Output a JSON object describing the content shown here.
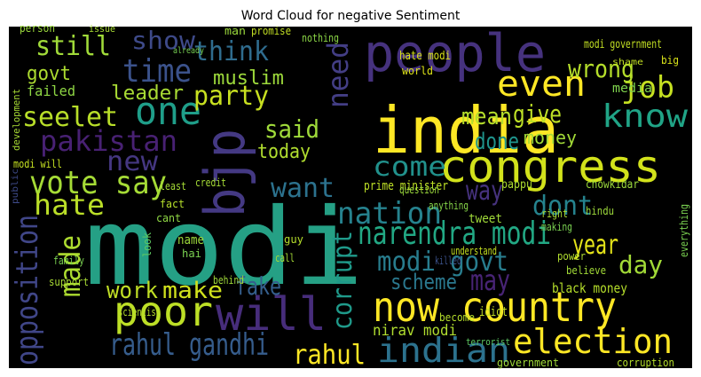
{
  "chart_data": {
    "type": "wordcloud",
    "title": "Word Cloud for negative Sentiment",
    "background": "#000000",
    "words": [
      {
        "text": "modi",
        "color": "#25a085"
      },
      {
        "text": "india",
        "color": "#fde725"
      },
      {
        "text": "people",
        "color": "#46327e"
      },
      {
        "text": "congress",
        "color": "#d2e21b"
      },
      {
        "text": "now country",
        "color": "#fde725"
      },
      {
        "text": "will",
        "color": "#472d7b"
      },
      {
        "text": "bjp",
        "color": "#443983"
      },
      {
        "text": "poor",
        "color": "#bddf26"
      },
      {
        "text": "election",
        "color": "#fde725"
      },
      {
        "text": "indian",
        "color": "#2c728e"
      },
      {
        "text": "narendra modi",
        "color": "#22a884"
      },
      {
        "text": "vote say",
        "color": "#a5db36"
      },
      {
        "text": "even",
        "color": "#fde725"
      },
      {
        "text": "know",
        "color": "#20a486"
      },
      {
        "text": "one",
        "color": "#1f9e89"
      },
      {
        "text": "time",
        "color": "#3b528b"
      },
      {
        "text": "think",
        "color": "#2f6c8e"
      },
      {
        "text": "show",
        "color": "#3e4a89"
      },
      {
        "text": "still",
        "color": "#a0da39"
      },
      {
        "text": "govt",
        "color": "#addc30"
      },
      {
        "text": "failed",
        "color": "#8fd744"
      },
      {
        "text": "seelet",
        "color": "#b8de29"
      },
      {
        "text": "leader",
        "color": "#a8db34"
      },
      {
        "text": "party",
        "color": "#c8e020"
      },
      {
        "text": "muslim",
        "color": "#9dd93b"
      },
      {
        "text": "pakistan",
        "color": "#482173"
      },
      {
        "text": "mean",
        "color": "#b5de2b"
      },
      {
        "text": "give",
        "color": "#bddf26"
      },
      {
        "text": "money",
        "color": "#a2da37"
      },
      {
        "text": "job",
        "color": "#c5e021"
      },
      {
        "text": "wrong",
        "color": "#b5de2b"
      },
      {
        "text": "media",
        "color": "#7fd34e"
      },
      {
        "text": "done",
        "color": "#1f948c"
      },
      {
        "text": "need",
        "color": "#433e85"
      },
      {
        "text": "said",
        "color": "#9fda3a"
      },
      {
        "text": "today",
        "color": "#b0dd2f"
      },
      {
        "text": "come",
        "color": "#21918c"
      },
      {
        "text": "new",
        "color": "#453781"
      },
      {
        "text": "want",
        "color": "#2c728e"
      },
      {
        "text": "way",
        "color": "#46327e"
      },
      {
        "text": "dont",
        "color": "#25838e"
      },
      {
        "text": "nation",
        "color": "#26828e"
      },
      {
        "text": "hate",
        "color": "#bade28"
      },
      {
        "text": "made",
        "color": "#addc30"
      },
      {
        "text": "opposition",
        "color": "#404688"
      },
      {
        "text": "work",
        "color": "#c0df25"
      },
      {
        "text": "make",
        "color": "#d0e11c"
      },
      {
        "text": "fake",
        "color": "#355f8d"
      },
      {
        "text": "corrupt",
        "color": "#1f9a8a"
      },
      {
        "text": "scheme",
        "color": "#2a788e"
      },
      {
        "text": "may",
        "color": "#482475"
      },
      {
        "text": "modi govt",
        "color": "#287d8e"
      },
      {
        "text": "year",
        "color": "#e5e419"
      },
      {
        "text": "day",
        "color": "#a2da37"
      },
      {
        "text": "rahul gandhi",
        "color": "#365d8d"
      },
      {
        "text": "rahul",
        "color": "#fde725"
      },
      {
        "text": "black money",
        "color": "#b5de2b"
      },
      {
        "text": "nirav modi",
        "color": "#b0dd2f"
      },
      {
        "text": "prime minister",
        "color": "#bddf26"
      },
      {
        "text": "government",
        "color": "#a0da39"
      },
      {
        "text": "corruption",
        "color": "#b5de2b"
      },
      {
        "text": "modi government",
        "color": "#c2df23"
      },
      {
        "text": "hate modi",
        "color": "#d8e219"
      },
      {
        "text": "world",
        "color": "#dde318"
      },
      {
        "text": "person",
        "color": "#9bd93c"
      },
      {
        "text": "issue",
        "color": "#a8db34"
      },
      {
        "text": "man",
        "color": "#9bd93c"
      },
      {
        "text": "promise",
        "color": "#c2df23"
      },
      {
        "text": "nothing",
        "color": "#8bd646"
      },
      {
        "text": "modi will",
        "color": "#c5e021"
      },
      {
        "text": "support",
        "color": "#a8db34"
      },
      {
        "text": "family",
        "color": "#7ad151"
      },
      {
        "text": "chowkidar",
        "color": "#9bd93c"
      },
      {
        "text": "tweet",
        "color": "#a0da39"
      },
      {
        "text": "anything",
        "color": "#86d549"
      },
      {
        "text": "pappu",
        "color": "#addc30"
      },
      {
        "text": "hindu",
        "color": "#9dd93b"
      },
      {
        "text": "killed",
        "color": "#3b528b"
      },
      {
        "text": "understand",
        "color": "#c5e021"
      },
      {
        "text": "believe",
        "color": "#a2da37"
      },
      {
        "text": "power",
        "color": "#b0dd2f"
      },
      {
        "text": "idiot",
        "color": "#c2df23"
      },
      {
        "text": "terrorist",
        "color": "#5ec962"
      },
      {
        "text": "become",
        "color": "#b5de2b"
      },
      {
        "text": "scientist",
        "color": "#b5de2b"
      },
      {
        "text": "behind",
        "color": "#a0da39"
      },
      {
        "text": "name",
        "color": "#9dd93b"
      },
      {
        "text": "credit",
        "color": "#a5db36"
      },
      {
        "text": "least",
        "color": "#a5db36"
      },
      {
        "text": "question",
        "color": "#9bd93c"
      },
      {
        "text": "everything",
        "color": "#7ad151"
      },
      {
        "text": "development",
        "color": "#a8db34"
      },
      {
        "text": "making",
        "color": "#7ad151"
      },
      {
        "text": "right",
        "color": "#a8db34"
      },
      {
        "text": "public",
        "color": "#3e4a89"
      },
      {
        "text": "already",
        "color": "#77d153"
      },
      {
        "text": "shame",
        "color": "#c2df23"
      },
      {
        "text": "big",
        "color": "#d8e219"
      },
      {
        "text": "hai",
        "color": "#7ad151"
      },
      {
        "text": "fact",
        "color": "#b5de2b"
      },
      {
        "text": "cant",
        "color": "#8fd744"
      },
      {
        "text": "look",
        "color": "#5ec962"
      },
      {
        "text": "guy",
        "color": "#b5de2b"
      },
      {
        "text": "call",
        "color": "#a5db36"
      }
    ]
  }
}
